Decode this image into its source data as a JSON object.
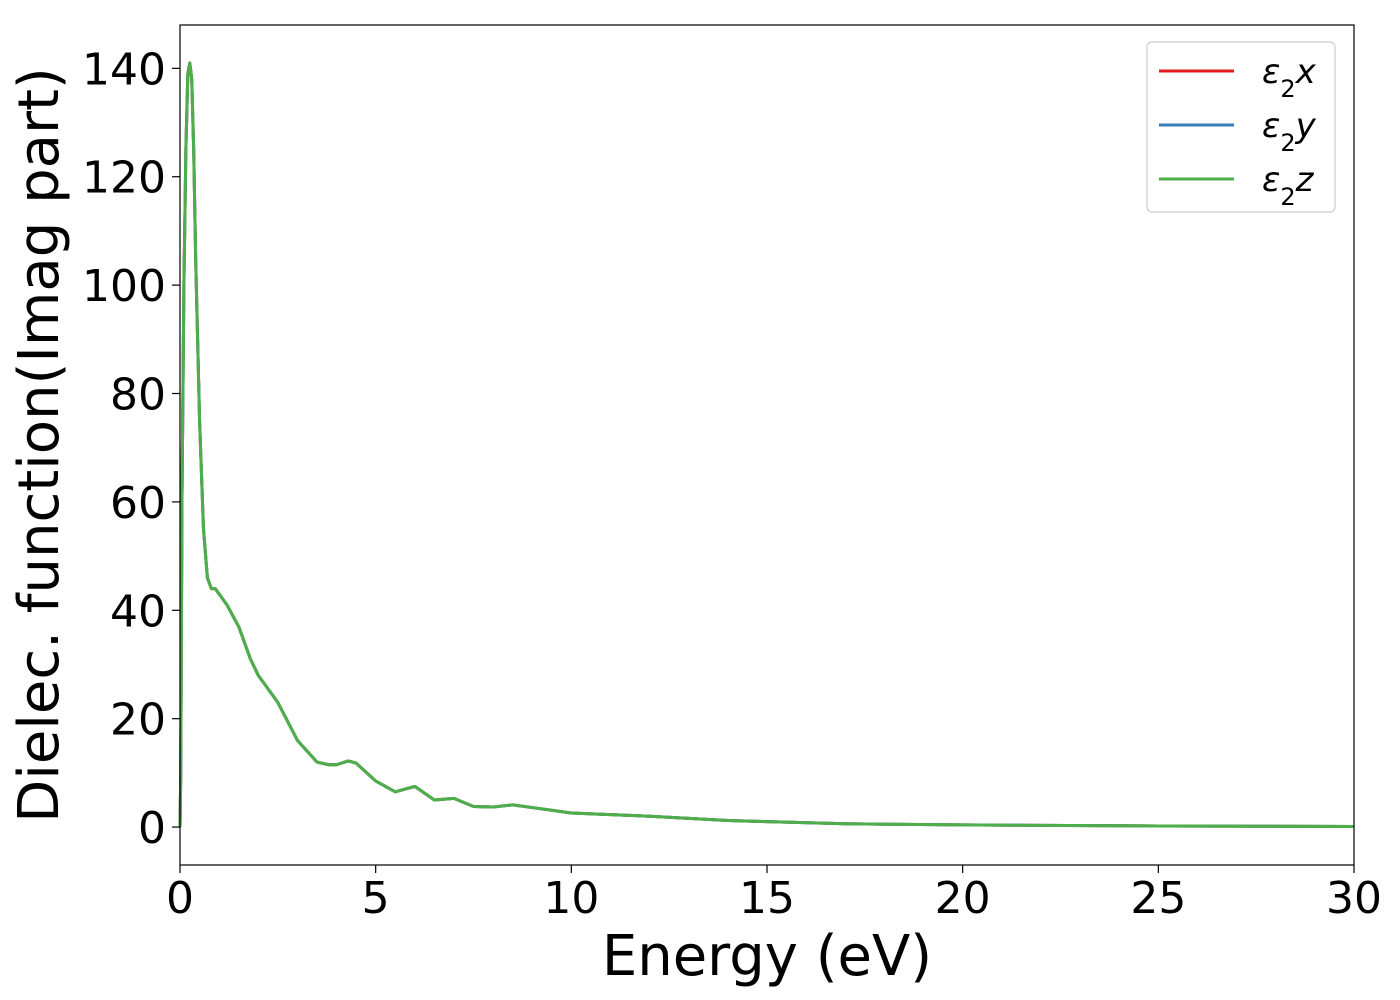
{
  "chart_data": {
    "type": "line",
    "xlabel": "Energy (eV)",
    "ylabel": "Dielec. function(Imag part)",
    "xlim": [
      0,
      30
    ],
    "ylim": [
      -7,
      148
    ],
    "xticks": [
      0,
      5,
      10,
      15,
      20,
      25,
      30
    ],
    "yticks": [
      0,
      20,
      40,
      60,
      80,
      100,
      120,
      140
    ],
    "grid": false,
    "legend_position": "top-right",
    "series": [
      {
        "name": "ε₂x",
        "base": "ε",
        "sub": "2",
        "var": "x",
        "color": "#e41a1c",
        "x": [
          0,
          0.02,
          0.05,
          0.1,
          0.15,
          0.2,
          0.25,
          0.3,
          0.35,
          0.4,
          0.5,
          0.6,
          0.7,
          0.8,
          0.9,
          1.0,
          1.2,
          1.5,
          1.8,
          2.0,
          2.5,
          3.0,
          3.5,
          3.8,
          4.0,
          4.3,
          4.5,
          5.0,
          5.5,
          6.0,
          6.5,
          7.0,
          7.5,
          8.0,
          8.5,
          9.0,
          10.0,
          11.0,
          12.0,
          13.0,
          14.0,
          15.0,
          17.0,
          20.0,
          25.0,
          30.0
        ],
        "y": [
          0,
          10,
          60,
          100,
          125,
          139,
          141,
          138,
          125,
          105,
          75,
          55,
          46,
          44,
          44,
          43,
          41,
          37,
          31,
          28,
          23,
          16,
          12,
          11.5,
          11.5,
          12.2,
          11.8,
          8.5,
          6.5,
          7.5,
          5.0,
          5.3,
          3.8,
          3.7,
          4.1,
          3.6,
          2.6,
          2.3,
          2.0,
          1.6,
          1.2,
          1.0,
          0.6,
          0.4,
          0.2,
          0.1
        ]
      },
      {
        "name": "ε₂y",
        "base": "ε",
        "sub": "2",
        "var": "y",
        "color": "#377eb8",
        "x": [
          0,
          0.02,
          0.05,
          0.1,
          0.15,
          0.2,
          0.25,
          0.3,
          0.35,
          0.4,
          0.5,
          0.6,
          0.7,
          0.8,
          0.9,
          1.0,
          1.2,
          1.5,
          1.8,
          2.0,
          2.5,
          3.0,
          3.5,
          3.8,
          4.0,
          4.3,
          4.5,
          5.0,
          5.5,
          6.0,
          6.5,
          7.0,
          7.5,
          8.0,
          8.5,
          9.0,
          10.0,
          11.0,
          12.0,
          13.0,
          14.0,
          15.0,
          17.0,
          20.0,
          25.0,
          30.0
        ],
        "y": [
          0,
          10,
          60,
          100,
          125,
          139,
          141,
          138,
          125,
          105,
          75,
          55,
          46,
          44,
          44,
          43,
          41,
          37,
          31,
          28,
          23,
          16,
          12,
          11.5,
          11.5,
          12.2,
          11.8,
          8.5,
          6.5,
          7.5,
          5.0,
          5.3,
          3.8,
          3.7,
          4.1,
          3.6,
          2.6,
          2.3,
          2.0,
          1.6,
          1.2,
          1.0,
          0.6,
          0.4,
          0.2,
          0.1
        ]
      },
      {
        "name": "ε₂z",
        "base": "ε",
        "sub": "2",
        "var": "z",
        "color": "#4daf4a",
        "x": [
          0,
          0.02,
          0.05,
          0.1,
          0.15,
          0.2,
          0.25,
          0.3,
          0.35,
          0.4,
          0.5,
          0.6,
          0.7,
          0.8,
          0.9,
          1.0,
          1.2,
          1.5,
          1.8,
          2.0,
          2.5,
          3.0,
          3.5,
          3.8,
          4.0,
          4.3,
          4.5,
          5.0,
          5.5,
          6.0,
          6.5,
          7.0,
          7.5,
          8.0,
          8.5,
          9.0,
          10.0,
          11.0,
          12.0,
          13.0,
          14.0,
          15.0,
          17.0,
          20.0,
          25.0,
          30.0
        ],
        "y": [
          0,
          10,
          60,
          100,
          125,
          139,
          141,
          138,
          125,
          105,
          75,
          55,
          46,
          44,
          44,
          43,
          41,
          37,
          31,
          28,
          23,
          16,
          12,
          11.5,
          11.5,
          12.2,
          11.8,
          8.5,
          6.5,
          7.5,
          5.0,
          5.3,
          3.8,
          3.7,
          4.1,
          3.6,
          2.6,
          2.3,
          2.0,
          1.6,
          1.2,
          1.0,
          0.6,
          0.4,
          0.2,
          0.1
        ]
      }
    ]
  }
}
